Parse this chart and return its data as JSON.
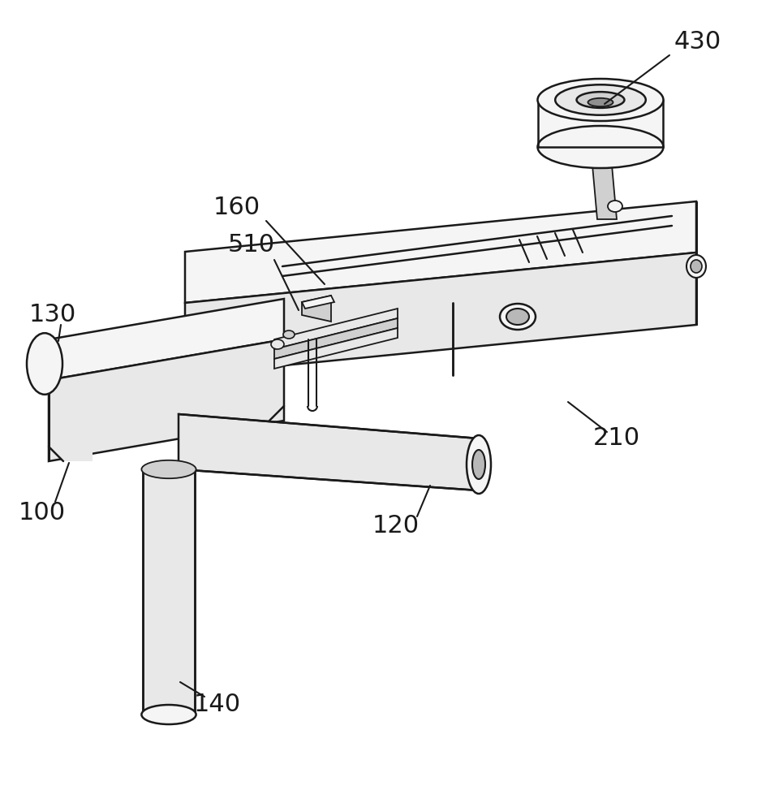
{
  "bg_color": "#ffffff",
  "lc": "#1a1a1a",
  "fc_light": "#f5f5f5",
  "fc_mid": "#e8e8e8",
  "fc_dark": "#d0d0d0",
  "fc_darker": "#b8b8b8",
  "lw": 1.8,
  "label_fs": 22,
  "figsize": [
    9.6,
    10.0
  ],
  "dpi": 100
}
